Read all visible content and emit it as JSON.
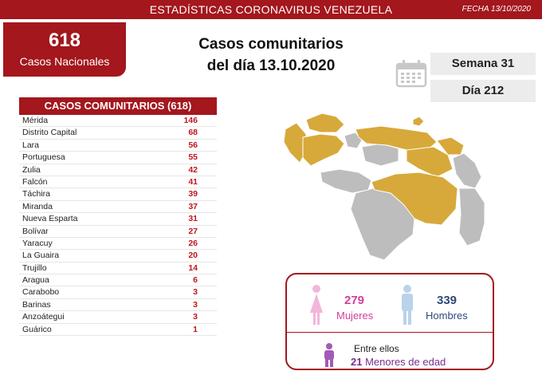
{
  "header": {
    "title": "ESTADÍSTICAS CORONAVIRUS VENEZUELA",
    "date": "FECHA 13/10/2020"
  },
  "national": {
    "count": "618",
    "label": "Casos Nacionales"
  },
  "headline": {
    "line1": "Casos comunitarios",
    "line2": "del día 13.10.2020"
  },
  "calendar_icon": "calendar-icon",
  "week": "Semana 31",
  "day": "Día 212",
  "table": {
    "header": "CASOS COMUNITARIOS (618)",
    "rows": [
      {
        "state": "Mérida",
        "value": "146"
      },
      {
        "state": "Distrito Capital",
        "value": "68"
      },
      {
        "state": "Lara",
        "value": "56"
      },
      {
        "state": "Portuguesa",
        "value": "55"
      },
      {
        "state": "Zulia",
        "value": "42"
      },
      {
        "state": "Falcón",
        "value": "41"
      },
      {
        "state": "Táchira",
        "value": "39"
      },
      {
        "state": "Miranda",
        "value": "37"
      },
      {
        "state": "Nueva Esparta",
        "value": "31"
      },
      {
        "state": "Bolívar",
        "value": "27"
      },
      {
        "state": "Yaracuy",
        "value": "26"
      },
      {
        "state": "La Guaira",
        "value": "20"
      },
      {
        "state": "Trujillo",
        "value": "14"
      },
      {
        "state": "Aragua",
        "value": "6"
      },
      {
        "state": "Carabobo",
        "value": "3"
      },
      {
        "state": "Barinas",
        "value": "3"
      },
      {
        "state": "Anzoátegui",
        "value": "3"
      },
      {
        "state": "Guárico",
        "value": "1"
      }
    ]
  },
  "gender": {
    "women_count": "279",
    "women_label": "Mujeres",
    "men_count": "339",
    "men_label": "Hombres",
    "minors_intro": "Entre ellos",
    "minors_count": "21",
    "minors_label": "Menores de edad"
  },
  "colors": {
    "brand_red": "#a3171d",
    "value_red": "#c0161c",
    "map_highlight": "#d7a93a",
    "map_base": "#bdbdbd",
    "women": "#d23e9b",
    "men": "#2e4a7a",
    "minors": "#7b2e8e"
  }
}
